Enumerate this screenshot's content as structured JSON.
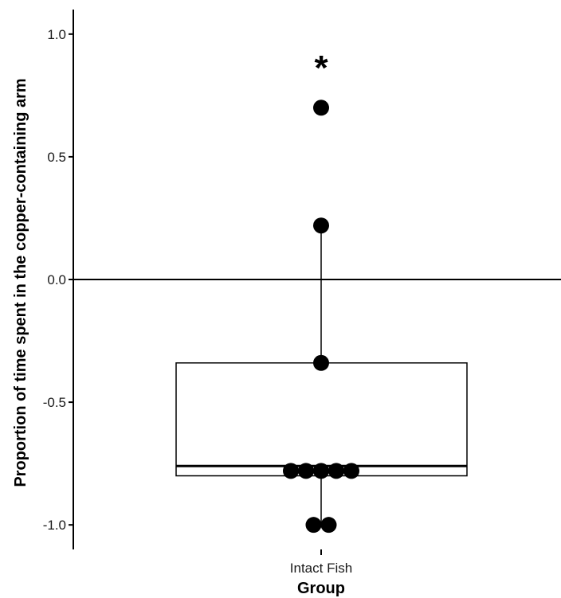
{
  "chart_data": {
    "type": "box",
    "title": "",
    "xlabel": "Group",
    "ylabel": "Proportion of time spent in the copper-containing arm",
    "categories": [
      "Intact Fish"
    ],
    "ylim": [
      -1.1,
      1.1
    ],
    "yticks": [
      1.0,
      0.5,
      0.0,
      -0.5,
      -1.0
    ],
    "ytick_labels": [
      "1.0",
      "0.5",
      "0.0",
      "-0.5",
      "-1.0"
    ],
    "reference_line_y": 0.0,
    "box": {
      "q1": -0.8,
      "median": -0.76,
      "q3": -0.34,
      "whisker_low": -1.0,
      "whisker_high": 0.22
    },
    "points": [
      {
        "y": 0.7
      },
      {
        "y": 0.22
      },
      {
        "y": -0.34
      },
      {
        "y": -0.78
      },
      {
        "y": -0.78
      },
      {
        "y": -0.78
      },
      {
        "y": -0.78
      },
      {
        "y": -0.78
      },
      {
        "y": -1.0
      },
      {
        "y": -1.0
      }
    ],
    "annotation": "*",
    "annotation_y": 0.88,
    "grid": false,
    "legend": "none",
    "colors": {
      "points": "#000000",
      "box_fill": "#ffffff",
      "lines": "#000000"
    }
  }
}
